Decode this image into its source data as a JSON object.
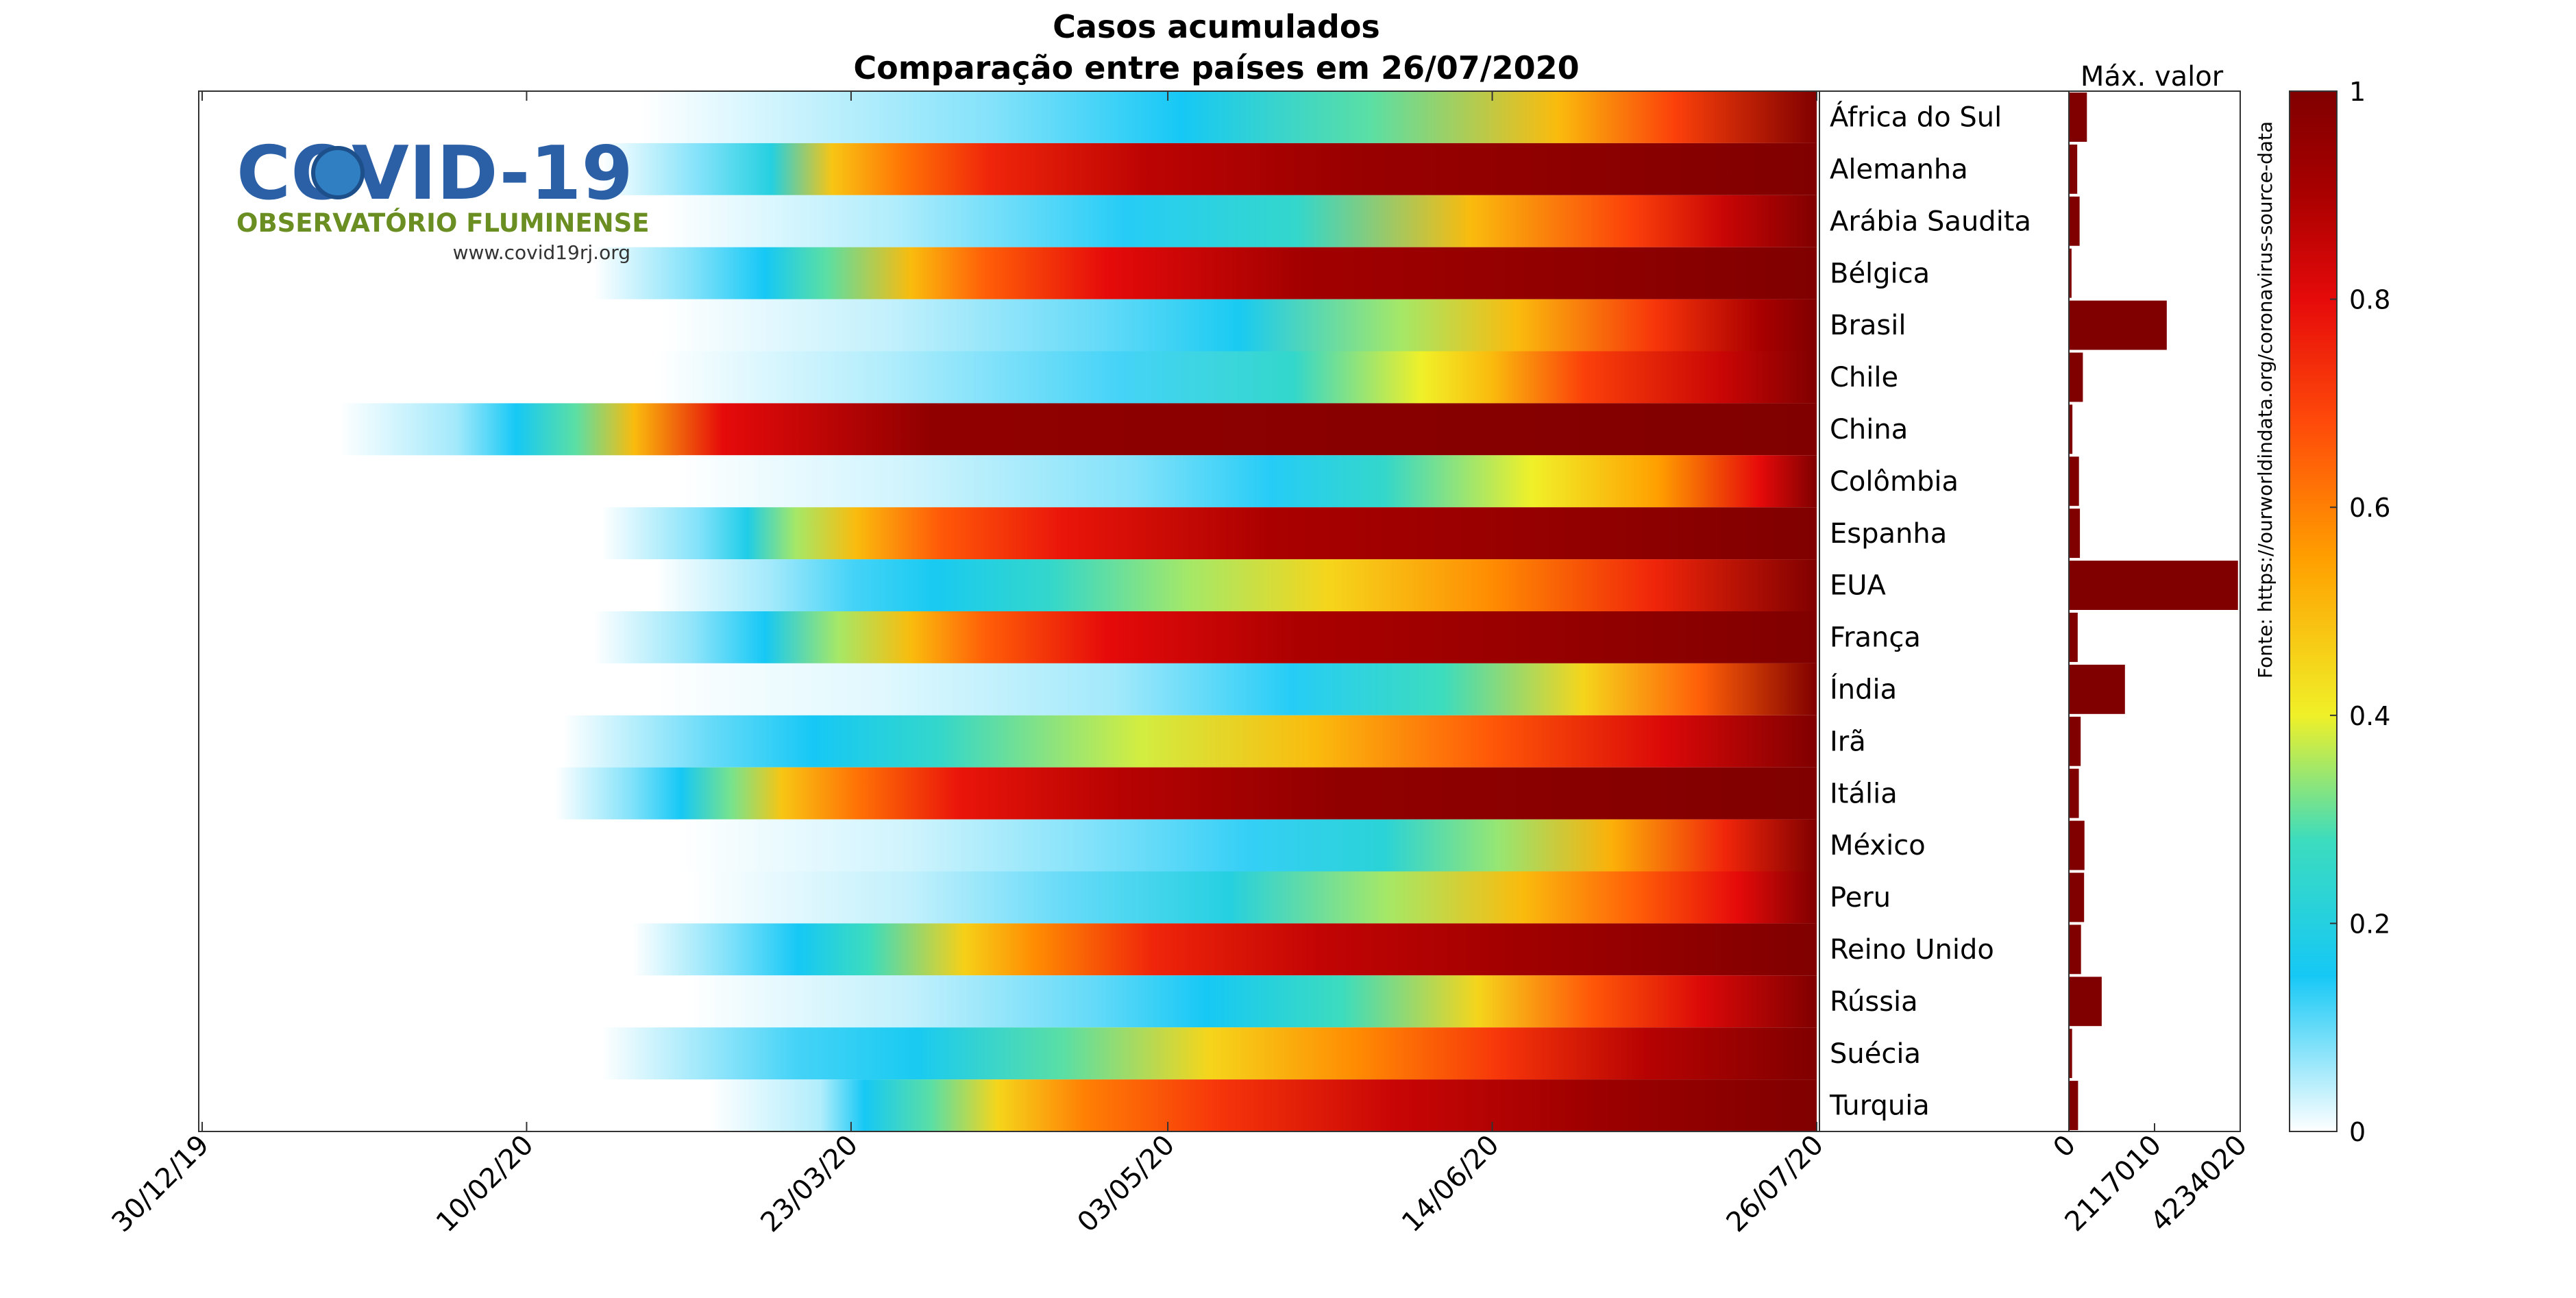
{
  "title": "Casos acumulados",
  "subtitle": "Comparação entre países em 26/07/2020",
  "logo": {
    "main": "COVID-19",
    "subtitle": "OBSERVATÓRIO FLUMINENSE",
    "url": "www.covid19rj.org",
    "colors": {
      "main": "#2b5fa6",
      "subtitle": "#6b8e23",
      "virus": "#2f7fc2"
    }
  },
  "source_note": "Fonte: https://ourworldindata.org/coronavirus-source-data",
  "max_label": "Máx. valor",
  "chart_data": {
    "type": "heatmap",
    "x_ticks": [
      "30/12/19",
      "10/02/20",
      "23/03/20",
      "03/05/20",
      "14/06/20",
      "26/07/20"
    ],
    "x_range_dates": [
      "30/12/19",
      "26/07/20"
    ],
    "value_range": [
      0,
      1
    ],
    "colormap": "jet-white (0 = white, 0.15 = cyan, 0.4 = yellow, 0.8 = red, 1 = dark red)",
    "countries": [
      {
        "name": "África do Sul",
        "first_case": "01/03/20",
        "stops": [
          [
            0.3,
            0.08
          ],
          [
            0.46,
            0.15
          ],
          [
            0.62,
            0.3
          ],
          [
            0.78,
            0.5
          ],
          [
            0.88,
            0.7
          ],
          [
            1.0,
            1.0
          ]
        ]
      },
      {
        "name": "Alemanha",
        "first_case": "25/02/20",
        "stops": [
          [
            0.08,
            0.08
          ],
          [
            0.14,
            0.2
          ],
          [
            0.19,
            0.48
          ],
          [
            0.25,
            0.62
          ],
          [
            0.32,
            0.75
          ],
          [
            0.45,
            0.87
          ],
          [
            0.62,
            0.94
          ],
          [
            1.0,
            1.0
          ]
        ]
      },
      {
        "name": "Arábia Saudita",
        "first_case": "04/03/20",
        "stops": [
          [
            0.2,
            0.05
          ],
          [
            0.4,
            0.14
          ],
          [
            0.55,
            0.25
          ],
          [
            0.7,
            0.5
          ],
          [
            0.84,
            0.7
          ],
          [
            0.92,
            0.85
          ],
          [
            1.0,
            1.0
          ]
        ]
      },
      {
        "name": "Bélgica",
        "first_case": "24/02/20",
        "stops": [
          [
            0.08,
            0.08
          ],
          [
            0.14,
            0.15
          ],
          [
            0.19,
            0.3
          ],
          [
            0.26,
            0.5
          ],
          [
            0.32,
            0.65
          ],
          [
            0.42,
            0.8
          ],
          [
            0.58,
            0.92
          ],
          [
            1.0,
            1.0
          ]
        ]
      },
      {
        "name": "Brasil",
        "first_case": "04/03/20",
        "stops": [
          [
            0.2,
            0.04
          ],
          [
            0.38,
            0.1
          ],
          [
            0.5,
            0.16
          ],
          [
            0.64,
            0.35
          ],
          [
            0.74,
            0.5
          ],
          [
            0.86,
            0.72
          ],
          [
            0.95,
            0.9
          ],
          [
            1.0,
            1.0
          ]
        ]
      },
      {
        "name": "Chile",
        "first_case": "03/03/20",
        "stops": [
          [
            0.2,
            0.05
          ],
          [
            0.4,
            0.12
          ],
          [
            0.55,
            0.25
          ],
          [
            0.66,
            0.4
          ],
          [
            0.72,
            0.5
          ],
          [
            0.8,
            0.7
          ],
          [
            0.92,
            0.85
          ],
          [
            1.0,
            1.0
          ]
        ]
      },
      {
        "name": "China",
        "first_case": "22/01/20",
        "stops": [
          [
            0.08,
            0.06
          ],
          [
            0.12,
            0.15
          ],
          [
            0.16,
            0.3
          ],
          [
            0.2,
            0.5
          ],
          [
            0.26,
            0.8
          ],
          [
            0.4,
            0.96
          ],
          [
            1.0,
            1.0
          ]
        ]
      },
      {
        "name": "Colômbia",
        "first_case": "06/03/20",
        "stops": [
          [
            0.2,
            0.03
          ],
          [
            0.4,
            0.08
          ],
          [
            0.52,
            0.14
          ],
          [
            0.62,
            0.25
          ],
          [
            0.75,
            0.4
          ],
          [
            0.86,
            0.55
          ],
          [
            0.95,
            0.8
          ],
          [
            1.0,
            1.0
          ]
        ]
      },
      {
        "name": "Espanha",
        "first_case": "25/02/20",
        "stops": [
          [
            0.08,
            0.08
          ],
          [
            0.12,
            0.18
          ],
          [
            0.16,
            0.35
          ],
          [
            0.21,
            0.5
          ],
          [
            0.28,
            0.66
          ],
          [
            0.38,
            0.78
          ],
          [
            0.55,
            0.9
          ],
          [
            1.0,
            1.0
          ]
        ]
      },
      {
        "name": "EUA",
        "first_case": "03/03/20",
        "stops": [
          [
            0.1,
            0.06
          ],
          [
            0.17,
            0.12
          ],
          [
            0.24,
            0.16
          ],
          [
            0.34,
            0.25
          ],
          [
            0.46,
            0.35
          ],
          [
            0.58,
            0.45
          ],
          [
            0.72,
            0.58
          ],
          [
            0.86,
            0.75
          ],
          [
            1.0,
            1.0
          ]
        ]
      },
      {
        "name": "França",
        "first_case": "24/02/20",
        "stops": [
          [
            0.08,
            0.07
          ],
          [
            0.14,
            0.15
          ],
          [
            0.2,
            0.35
          ],
          [
            0.26,
            0.5
          ],
          [
            0.32,
            0.65
          ],
          [
            0.42,
            0.8
          ],
          [
            0.58,
            0.9
          ],
          [
            1.0,
            1.0
          ]
        ]
      },
      {
        "name": "Índia",
        "first_case": "02/03/20",
        "stops": [
          [
            0.2,
            0.02
          ],
          [
            0.4,
            0.06
          ],
          [
            0.55,
            0.14
          ],
          [
            0.68,
            0.28
          ],
          [
            0.8,
            0.45
          ],
          [
            0.9,
            0.65
          ],
          [
            1.0,
            1.0
          ]
        ]
      },
      {
        "name": "Irã",
        "first_case": "20/02/20",
        "stops": [
          [
            0.06,
            0.05
          ],
          [
            0.12,
            0.1
          ],
          [
            0.2,
            0.15
          ],
          [
            0.3,
            0.25
          ],
          [
            0.46,
            0.38
          ],
          [
            0.6,
            0.5
          ],
          [
            0.74,
            0.66
          ],
          [
            0.88,
            0.82
          ],
          [
            1.0,
            1.0
          ]
        ]
      },
      {
        "name": "Itália",
        "first_case": "19/02/20",
        "stops": [
          [
            0.06,
            0.08
          ],
          [
            0.1,
            0.15
          ],
          [
            0.14,
            0.32
          ],
          [
            0.18,
            0.48
          ],
          [
            0.24,
            0.62
          ],
          [
            0.32,
            0.78
          ],
          [
            0.45,
            0.88
          ],
          [
            0.62,
            0.96
          ],
          [
            1.0,
            1.0
          ]
        ]
      },
      {
        "name": "México",
        "first_case": "06/03/20",
        "stops": [
          [
            0.2,
            0.03
          ],
          [
            0.36,
            0.08
          ],
          [
            0.5,
            0.13
          ],
          [
            0.62,
            0.22
          ],
          [
            0.72,
            0.34
          ],
          [
            0.82,
            0.52
          ],
          [
            0.92,
            0.75
          ],
          [
            1.0,
            1.0
          ]
        ]
      },
      {
        "name": "Peru",
        "first_case": "07/03/20",
        "stops": [
          [
            0.2,
            0.04
          ],
          [
            0.34,
            0.1
          ],
          [
            0.48,
            0.2
          ],
          [
            0.62,
            0.35
          ],
          [
            0.74,
            0.5
          ],
          [
            0.84,
            0.65
          ],
          [
            0.93,
            0.8
          ],
          [
            1.0,
            1.0
          ]
        ]
      },
      {
        "name": "Reino Unido",
        "first_case": "29/02/20",
        "stops": [
          [
            0.08,
            0.08
          ],
          [
            0.14,
            0.15
          ],
          [
            0.2,
            0.28
          ],
          [
            0.28,
            0.46
          ],
          [
            0.34,
            0.58
          ],
          [
            0.44,
            0.75
          ],
          [
            0.58,
            0.86
          ],
          [
            0.74,
            0.92
          ],
          [
            0.84,
            0.95
          ],
          [
            1.0,
            1.0
          ]
        ]
      },
      {
        "name": "Rússia",
        "first_case": "07/03/20",
        "stops": [
          [
            0.2,
            0.04
          ],
          [
            0.36,
            0.1
          ],
          [
            0.46,
            0.15
          ],
          [
            0.58,
            0.28
          ],
          [
            0.7,
            0.45
          ],
          [
            0.8,
            0.66
          ],
          [
            0.9,
            0.82
          ],
          [
            1.0,
            1.0
          ]
        ]
      },
      {
        "name": "Suécia",
        "first_case": "25/02/20",
        "stops": [
          [
            0.08,
            0.06
          ],
          [
            0.16,
            0.12
          ],
          [
            0.26,
            0.16
          ],
          [
            0.38,
            0.3
          ],
          [
            0.5,
            0.45
          ],
          [
            0.62,
            0.58
          ],
          [
            0.74,
            0.72
          ],
          [
            0.86,
            0.88
          ],
          [
            1.0,
            1.0
          ]
        ]
      },
      {
        "name": "Turquia",
        "first_case": "10/03/20",
        "stops": [
          [
            0.1,
            0.05
          ],
          [
            0.14,
            0.15
          ],
          [
            0.2,
            0.3
          ],
          [
            0.26,
            0.45
          ],
          [
            0.34,
            0.6
          ],
          [
            0.46,
            0.72
          ],
          [
            0.62,
            0.85
          ],
          [
            0.8,
            0.93
          ],
          [
            1.0,
            1.0
          ]
        ]
      }
    ],
    "bar_panel": {
      "xlabel": "Máx. valor",
      "ticks": [
        0,
        2117010,
        4234020
      ],
      "xlim": [
        0,
        4234020
      ],
      "values": [
        445433,
        206242,
        264973,
        66026,
        2419091,
        345790,
        86982,
        248976,
        272421,
        4178970,
        217801,
        1385522,
        291172,
        246286,
        385036,
        375961,
        299426,
        811073,
        79395,
        227019
      ]
    },
    "colorbar": {
      "ticks": [
        0,
        0.2,
        0.4,
        0.6,
        0.8,
        1
      ],
      "range": [
        0,
        1
      ]
    }
  }
}
